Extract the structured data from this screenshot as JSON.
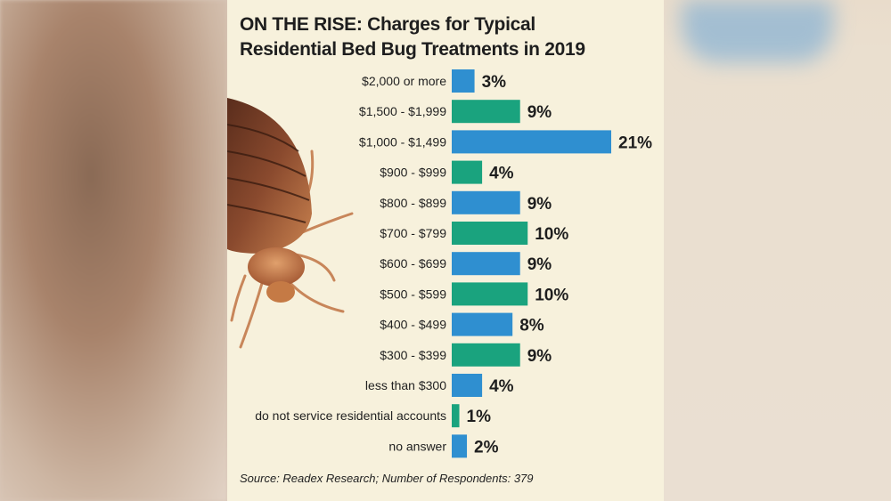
{
  "chart_data": {
    "type": "bar",
    "orientation": "horizontal",
    "title": "ON THE RISE: Charges for Typical Residential Bed Bug Treatments in 2019",
    "title_lines": [
      "ON THE RISE: Charges for Typical",
      "Residential Bed Bug Treatments in 2019"
    ],
    "categories": [
      "$2,000 or more",
      "$1,500 - $1,999",
      "$1,000 - $1,499",
      "$900 - $999",
      "$800 - $899",
      "$700 - $799",
      "$600 - $699",
      "$500 - $599",
      "$400 - $499",
      "$300 - $399",
      "less than $300",
      "do not service residential accounts",
      "no answer"
    ],
    "values": [
      3,
      9,
      21,
      4,
      9,
      10,
      9,
      10,
      8,
      9,
      4,
      1,
      2
    ],
    "value_labels": [
      "3%",
      "9%",
      "21%",
      "4%",
      "9%",
      "10%",
      "9%",
      "10%",
      "8%",
      "9%",
      "4%",
      "1%",
      "2%"
    ],
    "bar_colors": [
      "#2f8fd0",
      "#1aa37e",
      "#2f8fd0",
      "#1aa37e",
      "#2f8fd0",
      "#1aa37e",
      "#2f8fd0",
      "#1aa37e",
      "#2f8fd0",
      "#1aa37e",
      "#2f8fd0",
      "#1aa37e",
      "#2f8fd0"
    ],
    "unit": "%",
    "xlim": [
      0,
      21
    ],
    "grid": false,
    "source": "Source: Readex Research; Number of Respondents: 379"
  }
}
